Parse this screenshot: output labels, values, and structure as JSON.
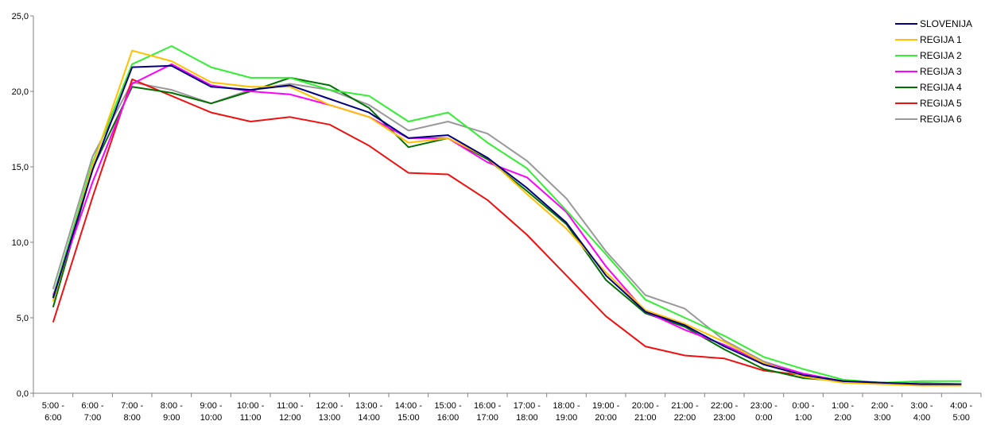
{
  "chart_data": {
    "type": "line",
    "title": "",
    "xlabel": "",
    "ylabel": "",
    "ylim": [
      0,
      25
    ],
    "y_ticks": [
      "0,0",
      "5,0",
      "10,0",
      "15,0",
      "20,0",
      "25,0"
    ],
    "categories": [
      [
        "5:00 -",
        "6:00"
      ],
      [
        "6:00 -",
        "7:00"
      ],
      [
        "7:00 -",
        "8:00"
      ],
      [
        "8:00 -",
        "9:00"
      ],
      [
        "9:00 -",
        "10:00"
      ],
      [
        "10:00 -",
        "11:00"
      ],
      [
        "11:00 -",
        "12:00"
      ],
      [
        "12:00 -",
        "13:00"
      ],
      [
        "13:00 -",
        "14:00"
      ],
      [
        "14:00 -",
        "15:00"
      ],
      [
        "15:00 -",
        "16:00"
      ],
      [
        "16:00 -",
        "17:00"
      ],
      [
        "17:00 -",
        "18:00"
      ],
      [
        "18:00 -",
        "19:00"
      ],
      [
        "19:00 -",
        "20:00"
      ],
      [
        "20:00 -",
        "21:00"
      ],
      [
        "21:00 -",
        "22:00"
      ],
      [
        "22:00 -",
        "23:00"
      ],
      [
        "23:00 -",
        "0:00"
      ],
      [
        "0:00 -",
        "1:00"
      ],
      [
        "1:00 -",
        "2:00"
      ],
      [
        "2:00 -",
        "3:00"
      ],
      [
        "3:00 -",
        "4:00"
      ],
      [
        "4:00 -",
        "5:00"
      ]
    ],
    "grid": false,
    "legend_position": "top-right",
    "series": [
      {
        "name": "SLOVENIJA",
        "color": "#000080",
        "values": [
          6.3,
          14.8,
          21.6,
          21.7,
          20.3,
          20.1,
          20.4,
          19.5,
          18.6,
          16.9,
          17.1,
          15.6,
          13.6,
          11.3,
          7.8,
          5.4,
          4.5,
          3.1,
          1.9,
          1.2,
          0.8,
          0.7,
          0.6,
          0.6
        ]
      },
      {
        "name": "REGIJA 1",
        "color": "#FFC000",
        "values": [
          6.1,
          15.1,
          22.7,
          22.0,
          20.6,
          20.3,
          20.3,
          19.1,
          18.3,
          16.6,
          16.9,
          15.6,
          13.2,
          10.9,
          8.0,
          5.5,
          4.6,
          3.4,
          2.0,
          1.1,
          0.7,
          0.6,
          0.5,
          0.5
        ]
      },
      {
        "name": "REGIJA 2",
        "color": "#33EE33",
        "values": [
          6.4,
          15.3,
          21.8,
          23.0,
          21.6,
          20.9,
          20.9,
          20.1,
          19.7,
          18.0,
          18.6,
          16.6,
          14.9,
          12.1,
          9.2,
          6.2,
          5.0,
          3.8,
          2.4,
          1.6,
          0.9,
          0.7,
          0.8,
          0.8
        ]
      },
      {
        "name": "REGIJA 3",
        "color": "#FF00FF",
        "values": [
          6.5,
          14.0,
          20.5,
          21.8,
          20.4,
          20.0,
          19.8,
          19.1,
          18.3,
          16.9,
          16.9,
          15.3,
          14.3,
          12.0,
          8.4,
          5.4,
          4.2,
          3.2,
          2.0,
          1.3,
          0.8,
          0.7,
          0.6,
          0.5
        ]
      },
      {
        "name": "REGIJA 4",
        "color": "#007000",
        "values": [
          5.7,
          14.9,
          20.3,
          19.9,
          19.2,
          20.0,
          20.9,
          20.4,
          18.9,
          16.3,
          16.9,
          15.5,
          13.4,
          11.2,
          7.5,
          5.3,
          4.4,
          2.9,
          1.6,
          1.0,
          0.8,
          0.7,
          0.6,
          0.6
        ]
      },
      {
        "name": "REGIJA 5",
        "color": "#EE1111",
        "values": [
          4.7,
          13.0,
          20.8,
          19.7,
          18.6,
          18.0,
          18.3,
          17.8,
          16.4,
          14.6,
          14.5,
          12.8,
          10.5,
          7.8,
          5.1,
          3.1,
          2.5,
          2.3,
          1.5,
          1.2,
          0.8,
          0.7,
          0.6,
          0.6
        ]
      },
      {
        "name": "REGIJA 6",
        "color": "#999999",
        "values": [
          6.9,
          15.7,
          20.6,
          20.1,
          19.2,
          20.1,
          20.5,
          20.1,
          19.1,
          17.4,
          18.0,
          17.2,
          15.4,
          12.9,
          9.4,
          6.5,
          5.6,
          3.5,
          2.1,
          1.3,
          0.8,
          0.6,
          0.7,
          0.6
        ]
      }
    ]
  }
}
